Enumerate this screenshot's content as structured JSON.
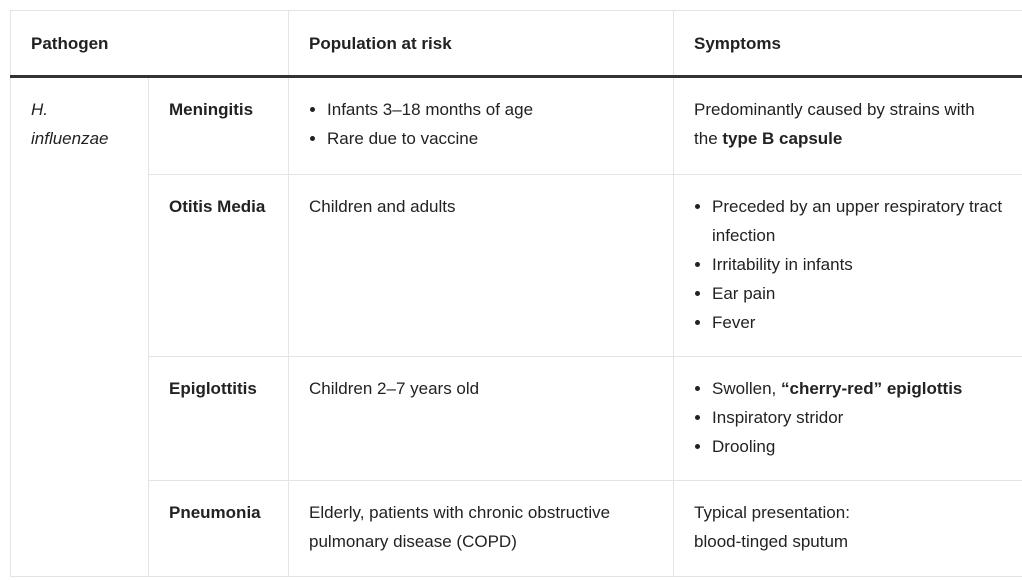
{
  "header": {
    "pathogen": "Pathogen",
    "population": "Population at risk",
    "symptoms": "Symptoms"
  },
  "pathogen": "H. influenzae",
  "rows": [
    {
      "disease": "Meningitis",
      "population": {
        "bullets": [
          [
            {
              "text": "Infants 3–18 months of age",
              "bold": false
            }
          ],
          [
            {
              "text": "Rare due to vaccine",
              "bold": false
            }
          ]
        ]
      },
      "symptoms": {
        "paragraphs": [
          [
            {
              "text": "Predominantly caused by strains with the ",
              "bold": false
            },
            {
              "text": "type B capsule",
              "bold": true
            }
          ]
        ]
      }
    },
    {
      "disease": "Otitis Media",
      "population": {
        "paragraphs": [
          [
            {
              "text": "Children and adults",
              "bold": false
            }
          ]
        ]
      },
      "symptoms": {
        "bullets": [
          [
            {
              "text": "Preceded by an upper respiratory tract infection",
              "bold": false
            }
          ],
          [
            {
              "text": "Irritability in infants",
              "bold": false
            }
          ],
          [
            {
              "text": "Ear pain",
              "bold": false
            }
          ],
          [
            {
              "text": "Fever",
              "bold": false
            }
          ]
        ]
      }
    },
    {
      "disease": "Epiglottitis",
      "population": {
        "paragraphs": [
          [
            {
              "text": "Children 2–7 years old",
              "bold": false
            }
          ]
        ]
      },
      "symptoms": {
        "bullets": [
          [
            {
              "text": "Swollen, ",
              "bold": false
            },
            {
              "text": "“cherry-red” epiglottis",
              "bold": true
            }
          ],
          [
            {
              "text": "Inspiratory stridor",
              "bold": false
            }
          ],
          [
            {
              "text": "Drooling",
              "bold": false
            }
          ]
        ]
      }
    },
    {
      "disease": "Pneumonia",
      "population": {
        "paragraphs": [
          [
            {
              "text": "Elderly, patients with chronic obstructive pulmonary disease (COPD)",
              "bold": false
            }
          ]
        ]
      },
      "symptoms": {
        "paragraphs": [
          [
            {
              "text": "Typical presentation:",
              "bold": false
            }
          ],
          [
            {
              "text": "blood-tinged sputum",
              "bold": false
            }
          ]
        ]
      }
    }
  ]
}
